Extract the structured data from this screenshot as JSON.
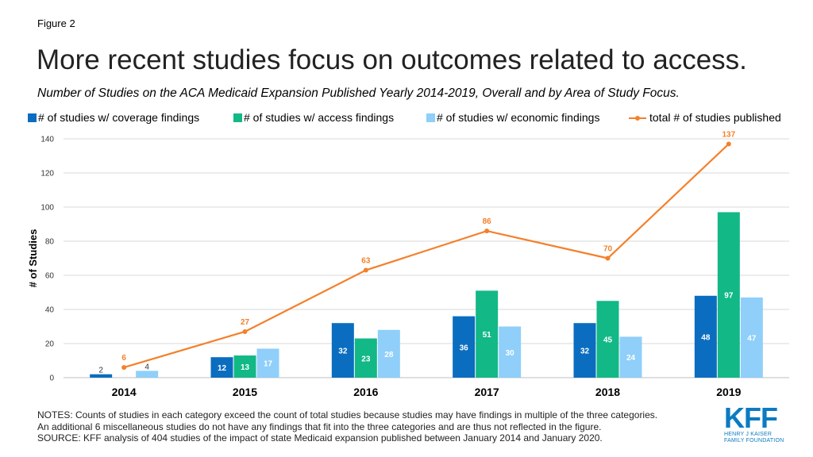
{
  "figure_label": "Figure 2",
  "title": "More recent studies focus on outcomes related to access.",
  "subtitle": "Number of Studies on the ACA Medicaid Expansion Published Yearly 2014-2019, Overall and by Area of Study Focus.",
  "notes": {
    "line1": "NOTES: Counts of studies in each category exceed the count of total studies because studies may have findings in multiple of the three categories.",
    "line2": "An additional 6 miscellaneous studies do not have any findings that fit into the three categories and are thus not reflected in the figure.",
    "source": "SOURCE: KFF analysis of 404 studies of the impact of state Medicaid expansion published between January 2014 and January 2020."
  },
  "logo": {
    "mark": "KFF",
    "line1": "HENRY J KAISER",
    "line2": "FAMILY FOUNDATION"
  },
  "chart_data": {
    "type": "bar",
    "categories": [
      "2014",
      "2015",
      "2016",
      "2017",
      "2018",
      "2019"
    ],
    "ylabel": "# of Studies",
    "ylim": [
      0,
      140
    ],
    "yticks": [
      0,
      20,
      40,
      60,
      80,
      100,
      120,
      140
    ],
    "grid": true,
    "legend_position": "top",
    "series": [
      {
        "name": "# of studies w/ coverage findings",
        "kind": "bar",
        "color": "#0B6DBF",
        "values": [
          2,
          12,
          32,
          36,
          32,
          48
        ]
      },
      {
        "name": "# of studies w/ access findings",
        "kind": "bar",
        "color": "#12B886",
        "values": [
          null,
          13,
          23,
          51,
          45,
          97
        ]
      },
      {
        "name": "# of studies w/ economic findings",
        "kind": "bar",
        "color": "#8FCFFA",
        "values": [
          4,
          17,
          28,
          30,
          24,
          47
        ]
      },
      {
        "name": "total # of studies published",
        "kind": "line",
        "color": "#F4802B",
        "values": [
          6,
          27,
          63,
          86,
          70,
          137
        ]
      }
    ]
  }
}
